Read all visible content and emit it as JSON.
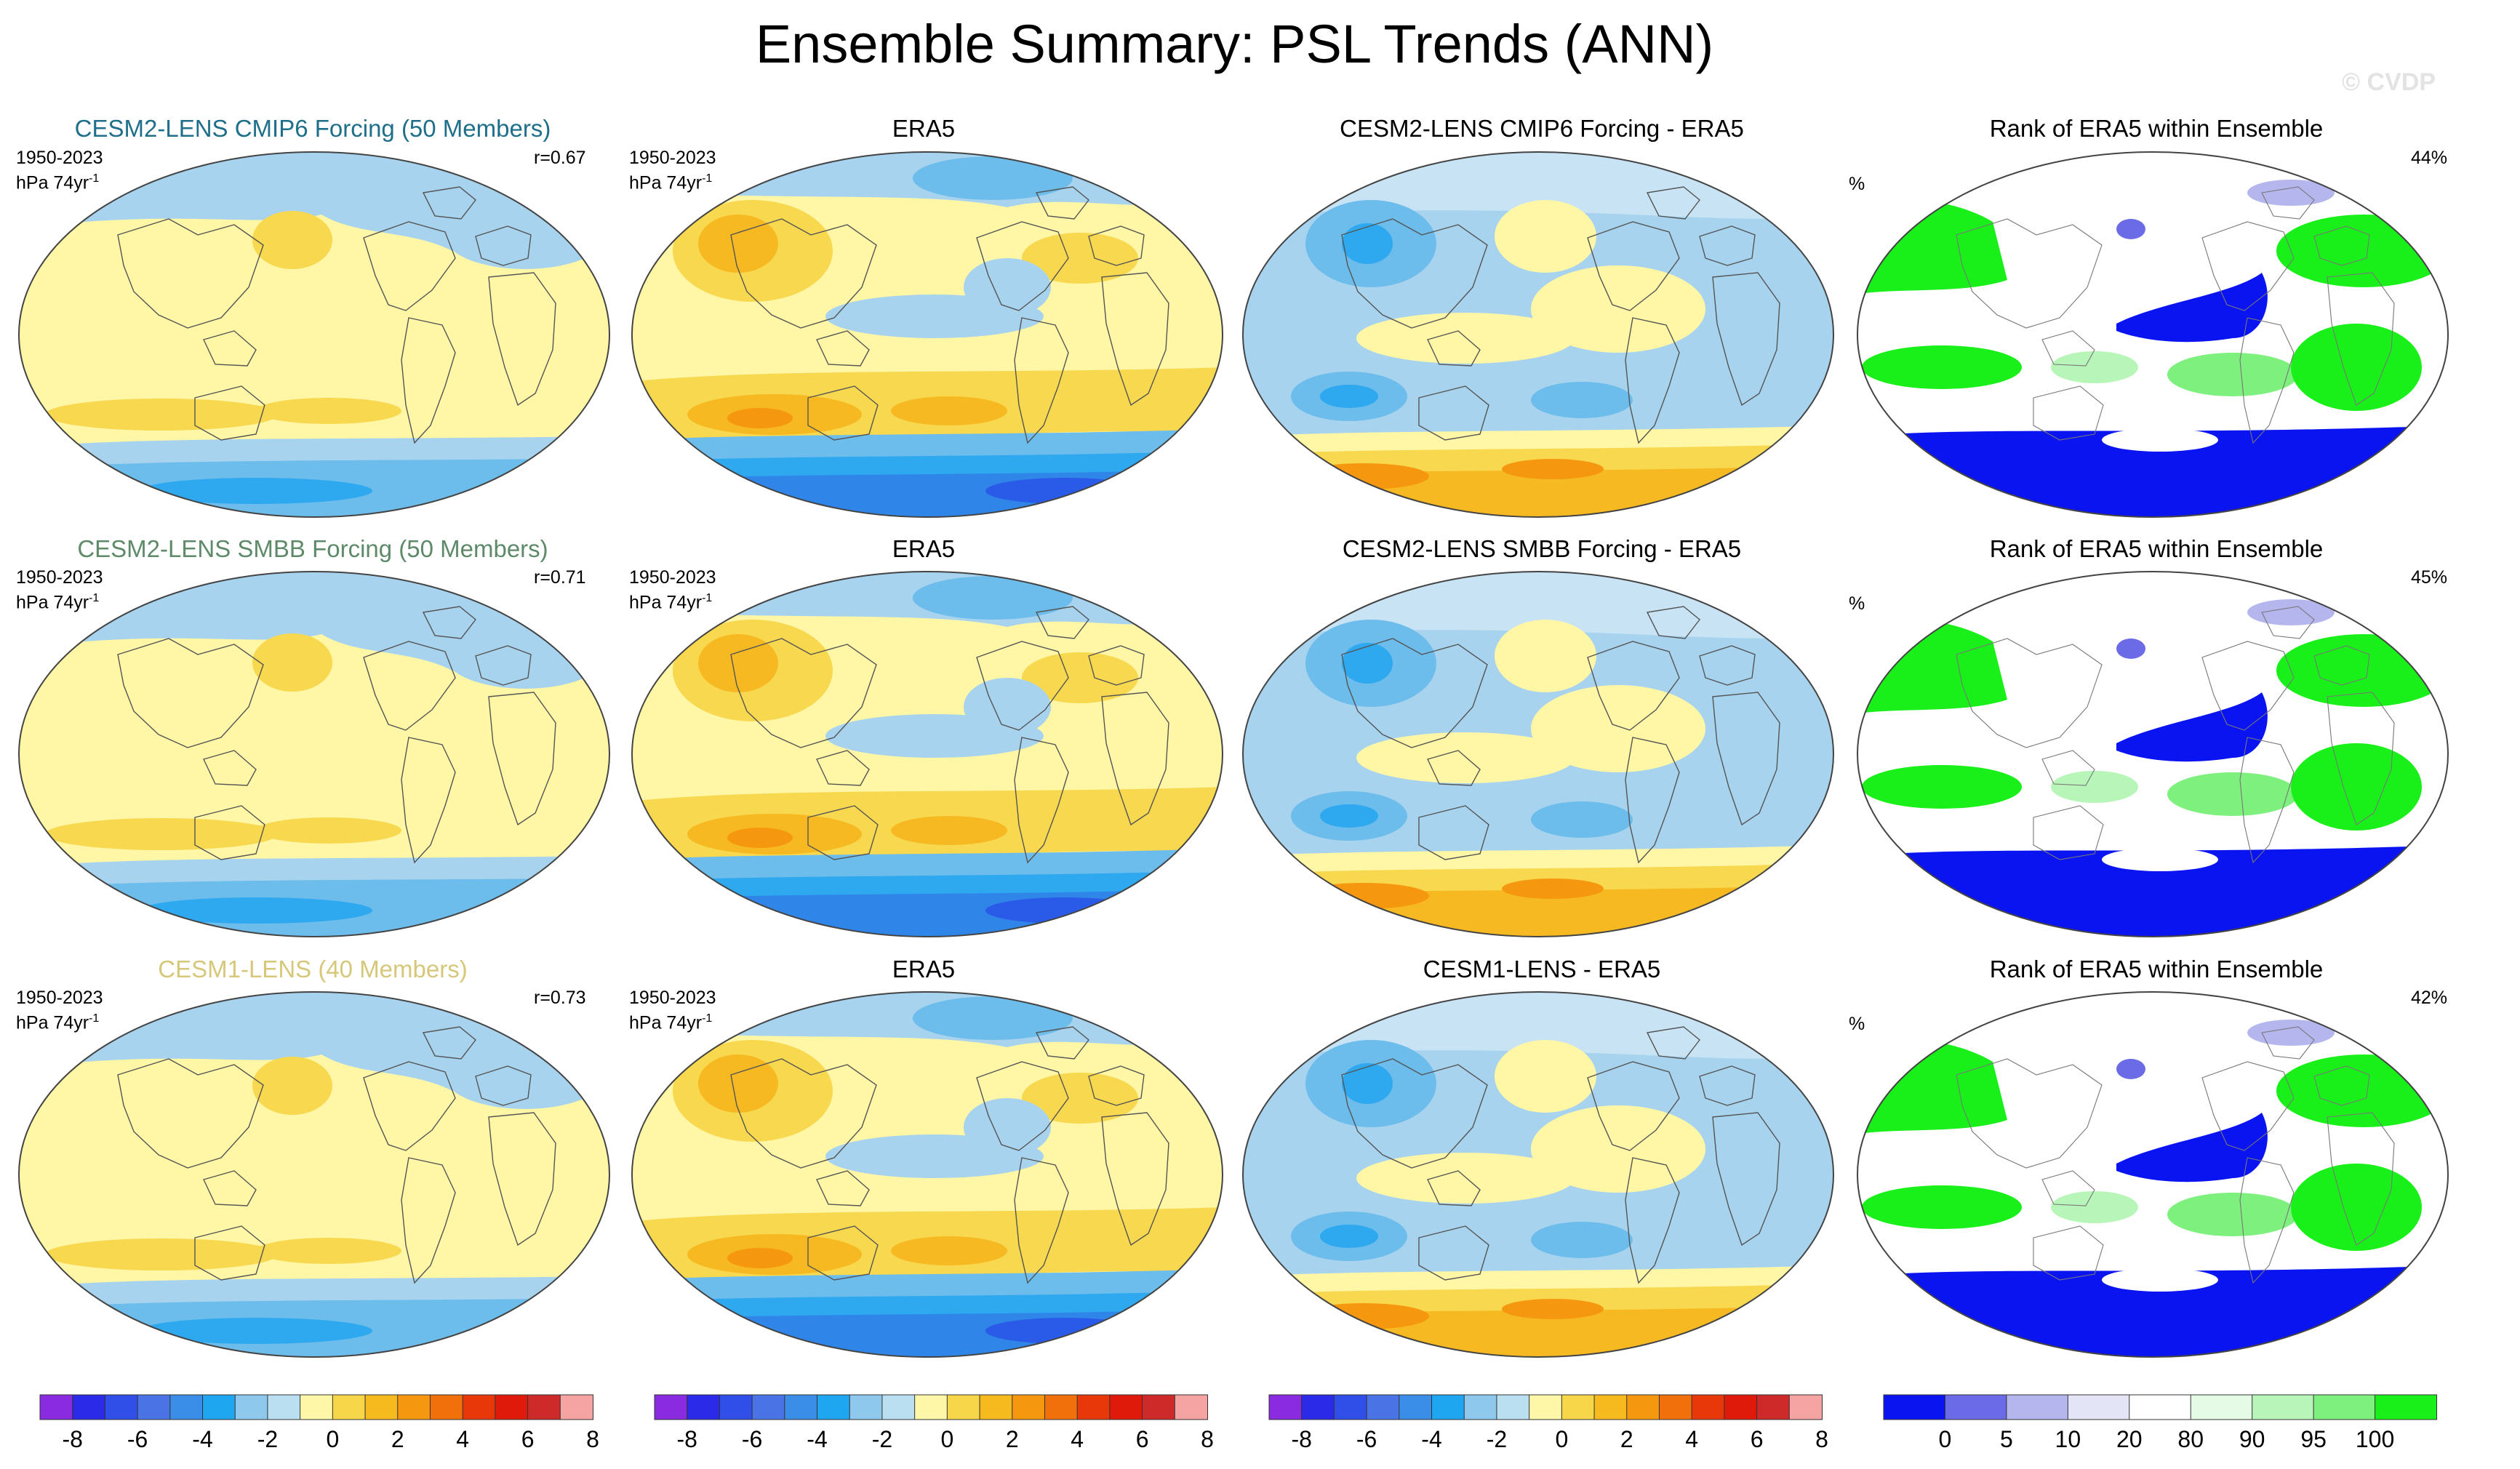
{
  "title": "Ensemble Summary: PSL Trends (ANN)",
  "watermark": "© CVDP",
  "rows": [
    {
      "model": {
        "title": "CESM2-LENS CMIP6 Forcing (50 Members)",
        "title_color": "#1f6f8b",
        "period": "1950-2023",
        "units": "hPa 74yr",
        "units_sup": "-1",
        "corr": "r=0.67"
      },
      "obs": {
        "title": "ERA5",
        "period": "1950-2023",
        "units": "hPa 74yr",
        "units_sup": "-1"
      },
      "diff": {
        "title": "CESM2-LENS CMIP6 Forcing - ERA5"
      },
      "rank": {
        "title": "Rank of ERA5 within Ensemble",
        "units": "%",
        "pct": "44%"
      }
    },
    {
      "model": {
        "title": "CESM2-LENS SMBB Forcing (50 Members)",
        "title_color": "#5e8a6a",
        "period": "1950-2023",
        "units": "hPa 74yr",
        "units_sup": "-1",
        "corr": "r=0.71"
      },
      "obs": {
        "title": "ERA5",
        "period": "1950-2023",
        "units": "hPa 74yr",
        "units_sup": "-1"
      },
      "diff": {
        "title": "CESM2-LENS SMBB Forcing - ERA5"
      },
      "rank": {
        "title": "Rank of ERA5 within Ensemble",
        "units": "%",
        "pct": "45%"
      }
    },
    {
      "model": {
        "title": "CESM1-LENS (40 Members)",
        "title_color": "#d6c77a",
        "period": "1950-2023",
        "units": "hPa 74yr",
        "units_sup": "-1",
        "corr": "r=0.73"
      },
      "obs": {
        "title": "ERA5",
        "period": "1950-2023",
        "units": "hPa 74yr",
        "units_sup": "-1"
      },
      "diff": {
        "title": "CESM1-LENS - ERA5"
      },
      "rank": {
        "title": "Rank of ERA5 within Ensemble",
        "units": "%",
        "pct": "42%"
      }
    }
  ],
  "trend_colorbar": {
    "colors": [
      "#8a2be2",
      "#2a2ae8",
      "#2f4fe8",
      "#4a74e6",
      "#3a8ee8",
      "#1ea6f0",
      "#8ec8ec",
      "#b9dff0",
      "#fff7a8",
      "#f7d64a",
      "#f6b91e",
      "#f5980f",
      "#f2700c",
      "#e8380a",
      "#e01a0a",
      "#cf2a2a",
      "#f5a3a3"
    ],
    "labels": [
      "-8",
      "-6",
      "-4",
      "-2",
      "0",
      "2",
      "4",
      "6",
      "8"
    ]
  },
  "rank_colorbar": {
    "colors": [
      "#0a14f0",
      "#6b6be8",
      "#b6b6ee",
      "#e4e4f7",
      "#ffffff",
      "#e6fbe6",
      "#b8f5b8",
      "#7df07d",
      "#19f019"
    ],
    "labels": [
      "0",
      "5",
      "10",
      "20",
      "80",
      "90",
      "95",
      "100"
    ]
  }
}
